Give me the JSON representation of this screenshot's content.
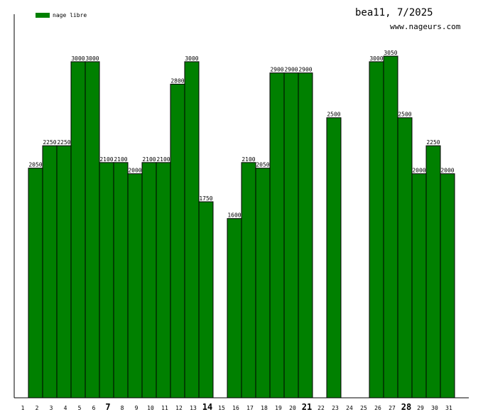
{
  "header": {
    "title": "bea11, 7/2025",
    "site": "www.nageurs.com"
  },
  "legend": {
    "label": "nage libre",
    "color": "#008000"
  },
  "chart_data": {
    "type": "bar",
    "categories": [
      "1",
      "2",
      "3",
      "4",
      "5",
      "6",
      "7",
      "8",
      "9",
      "10",
      "11",
      "12",
      "13",
      "14",
      "15",
      "16",
      "17",
      "18",
      "19",
      "20",
      "21",
      "22",
      "23",
      "24",
      "25",
      "26",
      "27",
      "28",
      "29",
      "30",
      "31"
    ],
    "bold_categories": [
      "7",
      "14",
      "21",
      "28"
    ],
    "series": [
      {
        "name": "nage libre",
        "color": "#008000",
        "values": [
          null,
          2050,
          2250,
          2250,
          3000,
          3000,
          2100,
          2100,
          2000,
          2100,
          2100,
          2800,
          3000,
          1750,
          null,
          1600,
          2100,
          2050,
          2900,
          2900,
          2900,
          null,
          2500,
          null,
          null,
          3000,
          3050,
          2500,
          2000,
          2250,
          2000
        ]
      }
    ],
    "ylim": [
      0,
      3050
    ],
    "grid": false,
    "legend_position": "top-left"
  }
}
